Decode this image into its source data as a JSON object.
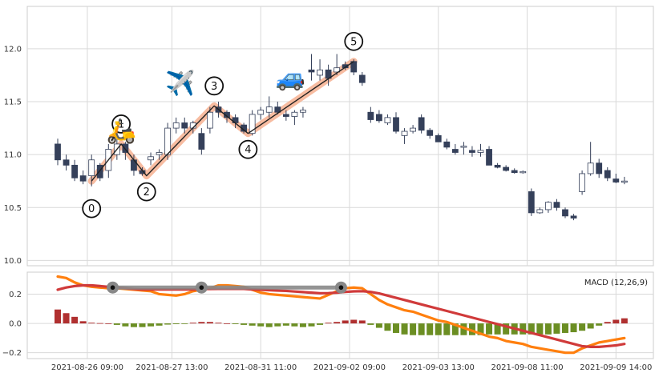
{
  "chart_data": [
    {
      "type": "candlestick",
      "title": "",
      "xlabel": "",
      "ylabel": "",
      "ylim": [
        9.95,
        12.4
      ],
      "yticks": [
        "10.0",
        "10.5",
        "11.0",
        "11.5",
        "12.0"
      ],
      "xticks": [
        "2021-08-26 09:00",
        "2021-08-27 13:00",
        "2021-08-31 11:00",
        "2021-09-02 09:00",
        "2021-09-03 13:00",
        "2021-09-08 11:00",
        "2021-09-09 14:00"
      ],
      "grid": true,
      "candles": [
        [
          11.1,
          11.15,
          10.9,
          10.95
        ],
        [
          10.95,
          11.0,
          10.85,
          10.9
        ],
        [
          10.9,
          10.95,
          10.75,
          10.78
        ],
        [
          10.8,
          10.85,
          10.72,
          10.75
        ],
        [
          10.8,
          11.0,
          10.7,
          10.95
        ],
        [
          10.9,
          10.92,
          10.75,
          10.78
        ],
        [
          10.85,
          11.1,
          10.78,
          11.05
        ],
        [
          11.0,
          11.15,
          10.95,
          11.1
        ],
        [
          11.1,
          11.12,
          10.95,
          11.02
        ],
        [
          10.95,
          11.0,
          10.8,
          10.85
        ],
        [
          10.85,
          10.88,
          10.8,
          10.82
        ],
        [
          10.95,
          11.02,
          10.9,
          10.98
        ],
        [
          11.0,
          11.05,
          10.95,
          11.02
        ],
        [
          11.0,
          11.3,
          10.95,
          11.25
        ],
        [
          11.25,
          11.35,
          11.2,
          11.3
        ],
        [
          11.3,
          11.35,
          11.2,
          11.25
        ],
        [
          11.25,
          11.32,
          11.2,
          11.3
        ],
        [
          11.2,
          11.25,
          11.0,
          11.05
        ],
        [
          11.25,
          11.45,
          11.2,
          11.4
        ],
        [
          11.45,
          11.5,
          11.35,
          11.4
        ],
        [
          11.4,
          11.42,
          11.3,
          11.35
        ],
        [
          11.35,
          11.38,
          11.25,
          11.3
        ],
        [
          11.28,
          11.3,
          11.2,
          11.22
        ],
        [
          11.2,
          11.42,
          11.18,
          11.38
        ],
        [
          11.38,
          11.45,
          11.33,
          11.42
        ],
        [
          11.4,
          11.55,
          11.35,
          11.45
        ],
        [
          11.45,
          11.5,
          11.38,
          11.4
        ],
        [
          11.38,
          11.42,
          11.32,
          11.36
        ],
        [
          11.36,
          11.42,
          11.28,
          11.4
        ],
        [
          11.4,
          11.45,
          11.35,
          11.42
        ],
        [
          11.8,
          11.95,
          11.7,
          11.78
        ],
        [
          11.75,
          11.9,
          11.7,
          11.8
        ],
        [
          11.8,
          11.85,
          11.65,
          11.72
        ],
        [
          11.78,
          11.95,
          11.75,
          11.82
        ],
        [
          11.85,
          11.88,
          11.8,
          11.82
        ],
        [
          11.88,
          11.9,
          11.75,
          11.78
        ],
        [
          11.75,
          11.78,
          11.65,
          11.68
        ],
        [
          11.4,
          11.45,
          11.3,
          11.33
        ],
        [
          11.38,
          11.42,
          11.3,
          11.32
        ],
        [
          11.3,
          11.38,
          11.28,
          11.35
        ],
        [
          11.35,
          11.4,
          11.2,
          11.22
        ],
        [
          11.18,
          11.25,
          11.1,
          11.22
        ],
        [
          11.22,
          11.28,
          11.2,
          11.25
        ],
        [
          11.35,
          11.38,
          11.2,
          11.23
        ],
        [
          11.23,
          11.25,
          11.15,
          11.18
        ],
        [
          11.18,
          11.2,
          11.12,
          11.12
        ],
        [
          11.12,
          11.15,
          11.05,
          11.07
        ],
        [
          11.05,
          11.1,
          11.0,
          11.02
        ],
        [
          11.07,
          11.12,
          11.0,
          11.08
        ],
        [
          11.04,
          11.08,
          10.98,
          11.02
        ],
        [
          11.02,
          11.1,
          10.98,
          11.04
        ],
        [
          11.05,
          11.08,
          10.9,
          10.9
        ],
        [
          10.9,
          10.92,
          10.87,
          10.88
        ],
        [
          10.88,
          10.9,
          10.84,
          10.85
        ],
        [
          10.85,
          10.87,
          10.82,
          10.83
        ],
        [
          10.83,
          10.85,
          10.82,
          10.84
        ],
        [
          10.65,
          10.68,
          10.42,
          10.45
        ],
        [
          10.45,
          10.5,
          10.44,
          10.48
        ],
        [
          10.48,
          10.56,
          10.45,
          10.55
        ],
        [
          10.55,
          10.58,
          10.47,
          10.5
        ],
        [
          10.48,
          10.5,
          10.4,
          10.42
        ],
        [
          10.42,
          10.44,
          10.38,
          10.4
        ],
        [
          10.65,
          10.85,
          10.62,
          10.82
        ],
        [
          10.82,
          11.12,
          10.8,
          10.92
        ],
        [
          10.92,
          10.96,
          10.78,
          10.82
        ],
        [
          10.85,
          10.88,
          10.75,
          10.78
        ],
        [
          10.77,
          10.82,
          10.73,
          10.74
        ],
        [
          10.74,
          10.79,
          10.72,
          10.75
        ]
      ],
      "wave_points": [
        {
          "label": "0",
          "x": 4,
          "y": 10.75
        },
        {
          "label": "1",
          "x": 7.5,
          "y": 11.1
        },
        {
          "label": "2",
          "x": 10.5,
          "y": 10.8
        },
        {
          "label": "3",
          "x": 18.5,
          "y": 11.46
        },
        {
          "label": "4",
          "x": 22.5,
          "y": 11.2
        },
        {
          "label": "5",
          "x": 35,
          "y": 11.88
        }
      ],
      "emojis": [
        {
          "char": "🛵",
          "x": 7.5,
          "y": 11.15
        },
        {
          "char": "✈️",
          "x": 14.5,
          "y": 11.6
        },
        {
          "char": "🚙",
          "x": 27.5,
          "y": 11.65
        }
      ],
      "colors": {
        "up": "#ffffff",
        "down": "#35405a",
        "wave": "#222222",
        "wave_glow": "#f4a582"
      }
    },
    {
      "type": "line",
      "legend": "MACD (12,26,9)",
      "legend_position": "top-right",
      "ylim": [
        -0.24,
        0.35
      ],
      "yticks": [
        "0.2",
        "0.0",
        "−0.2"
      ],
      "grid": true,
      "series": [
        {
          "values": [
            0.32,
            0.31,
            0.28,
            0.26,
            0.25,
            0.245,
            0.24,
            0.24,
            0.235,
            0.23,
            0.225,
            0.22,
            0.2,
            0.195,
            0.19,
            0.2,
            0.22,
            0.23,
            0.24,
            0.26,
            0.26,
            0.255,
            0.25,
            0.23,
            0.21,
            0.2,
            0.195,
            0.19,
            0.185,
            0.18,
            0.175,
            0.17,
            0.195,
            0.22,
            0.24,
            0.245,
            0.24,
            0.2,
            0.16,
            0.13,
            0.11,
            0.09,
            0.08,
            0.06,
            0.04,
            0.02,
            0.01,
            -0.01,
            -0.03,
            -0.05,
            -0.07,
            -0.09,
            -0.1,
            -0.12,
            -0.13,
            -0.14,
            -0.16,
            -0.17,
            -0.18,
            -0.19,
            -0.2,
            -0.2,
            -0.17,
            -0.15,
            -0.13,
            -0.12,
            -0.11,
            -0.1
          ],
          "color": "#ff7f0e"
        },
        {
          "values": [
            0.23,
            0.245,
            0.255,
            0.26,
            0.26,
            0.255,
            0.25,
            0.245,
            0.24,
            0.235,
            0.232,
            0.232,
            0.232,
            0.232,
            0.232,
            0.232,
            0.232,
            0.235,
            0.235,
            0.236,
            0.236,
            0.236,
            0.236,
            0.232,
            0.23,
            0.227,
            0.224,
            0.222,
            0.218,
            0.214,
            0.21,
            0.206,
            0.207,
            0.21,
            0.215,
            0.219,
            0.22,
            0.215,
            0.205,
            0.19,
            0.175,
            0.16,
            0.145,
            0.13,
            0.115,
            0.1,
            0.085,
            0.07,
            0.055,
            0.04,
            0.025,
            0.01,
            -0.005,
            -0.02,
            -0.035,
            -0.05,
            -0.065,
            -0.08,
            -0.095,
            -0.11,
            -0.125,
            -0.14,
            -0.155,
            -0.16,
            -0.16,
            -0.155,
            -0.15,
            -0.14
          ],
          "color": "#d03a3a"
        }
      ],
      "histogram": [
        0.095,
        0.07,
        0.045,
        0.015,
        0.005,
        0.002,
        0.0,
        -0.01,
        -0.02,
        -0.025,
        -0.025,
        -0.02,
        -0.015,
        -0.008,
        -0.005,
        -0.002,
        0.005,
        0.01,
        0.01,
        0.005,
        0.0,
        -0.005,
        -0.01,
        -0.015,
        -0.02,
        -0.025,
        -0.02,
        -0.015,
        -0.02,
        -0.025,
        -0.02,
        -0.01,
        0.005,
        0.01,
        0.02,
        0.025,
        0.02,
        -0.01,
        -0.03,
        -0.05,
        -0.065,
        -0.075,
        -0.08,
        -0.08,
        -0.08,
        -0.08,
        -0.08,
        -0.08,
        -0.08,
        -0.08,
        -0.08,
        -0.075,
        -0.075,
        -0.075,
        -0.075,
        -0.075,
        -0.075,
        -0.075,
        -0.075,
        -0.07,
        -0.065,
        -0.06,
        -0.05,
        -0.035,
        -0.015,
        0.01,
        0.025,
        0.035
      ],
      "hist_colors": {
        "positive": "#b03030",
        "negative": "#6b8e23"
      },
      "trend_segment": {
        "x": [
          6.5,
          17,
          33.5
        ],
        "y": 0.245,
        "color": "#888888"
      }
    }
  ]
}
